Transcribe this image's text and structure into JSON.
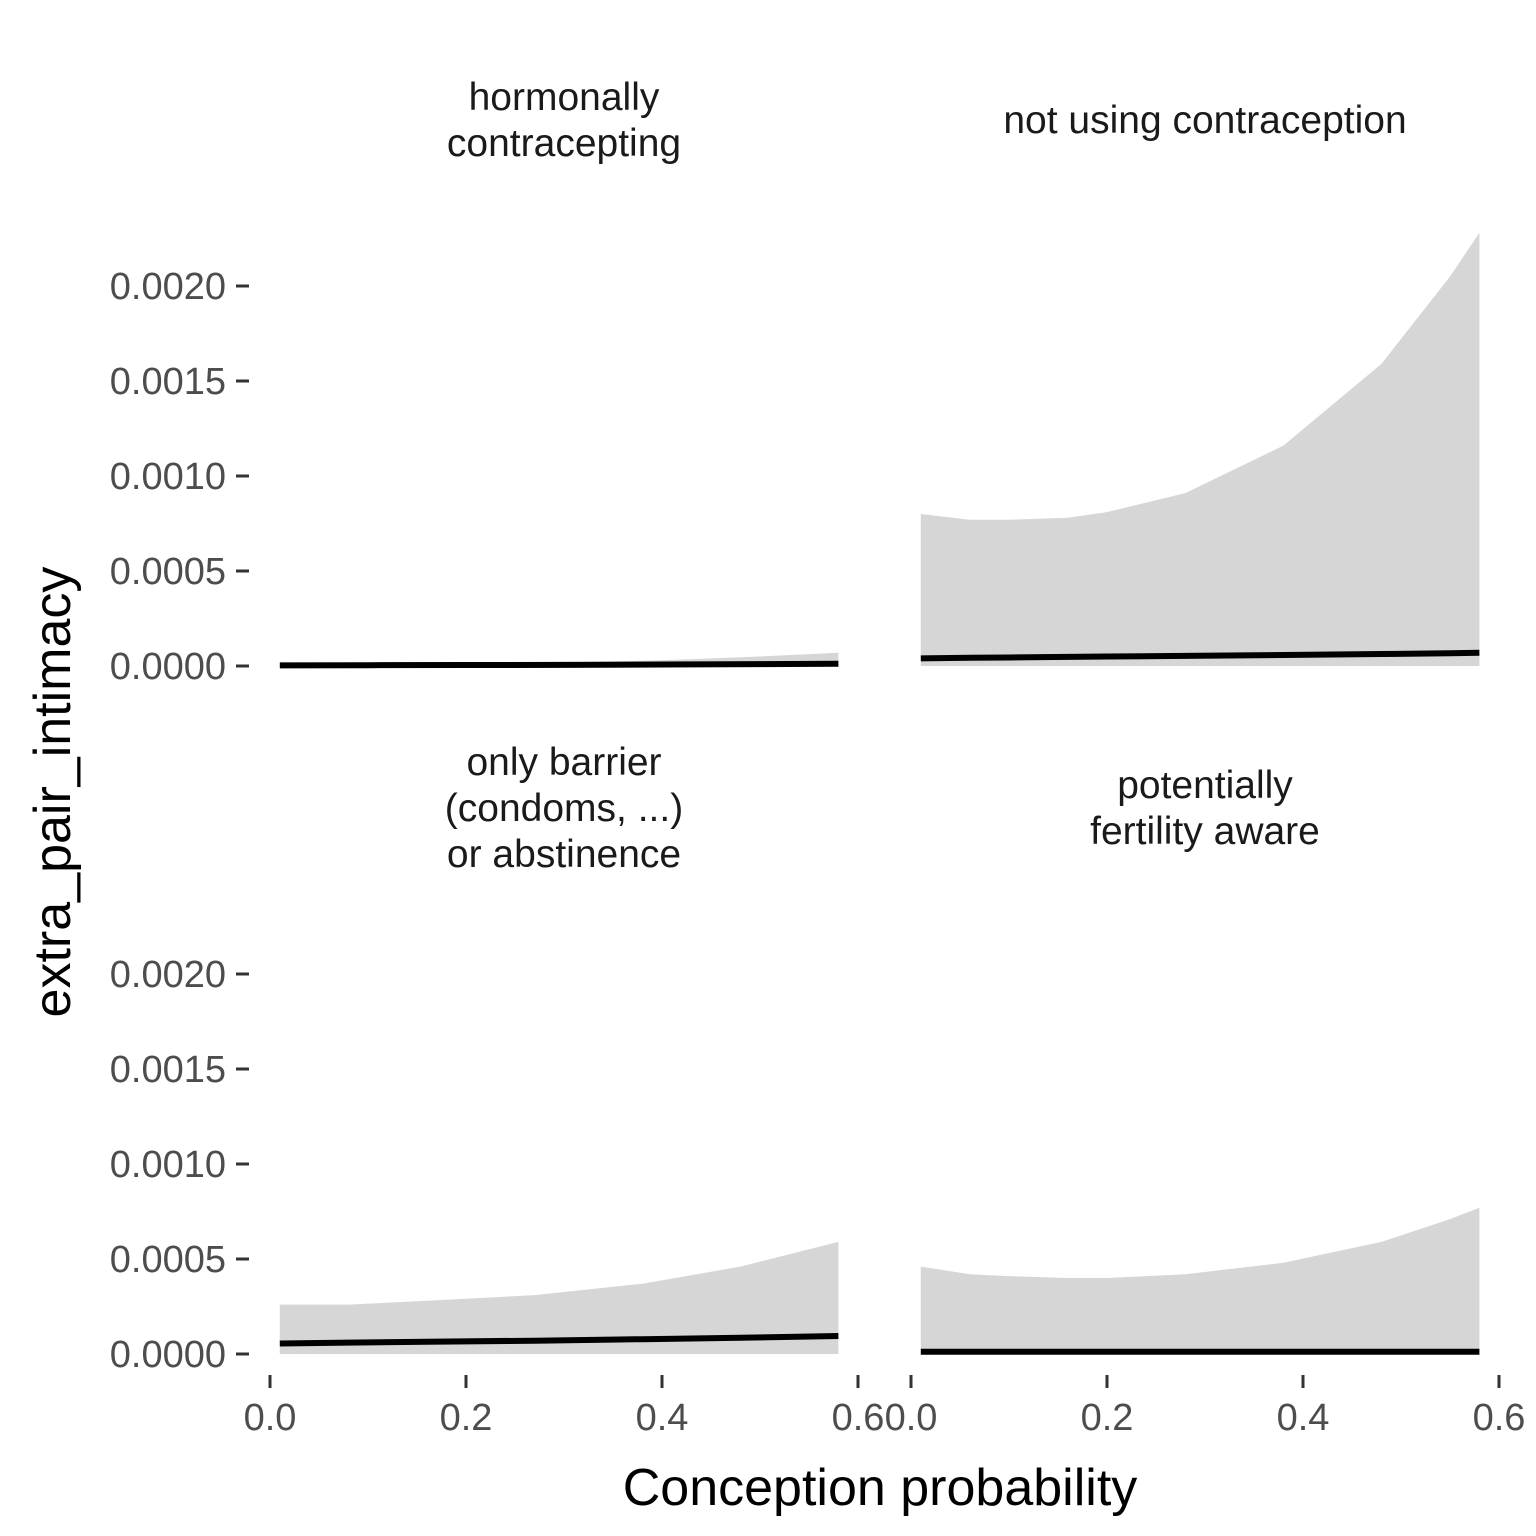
{
  "chart_data": {
    "type": "area",
    "xlabel": "Conception probability",
    "ylabel": "extra_pair_intimacy",
    "xlim": [
      0.0,
      0.6
    ],
    "ylim": [
      0.0,
      0.002
    ],
    "x_ticks": [
      "0.0",
      "0.2",
      "0.4",
      "0.6"
    ],
    "y_ticks": [
      "0.0000",
      "0.0005",
      "0.0010",
      "0.0015",
      "0.0020"
    ],
    "grid": false,
    "facets": [
      {
        "title": [
          "hormonally",
          "contracepting"
        ],
        "x": [
          0.01,
          0.1,
          0.2,
          0.3,
          0.4,
          0.5,
          0.58
        ],
        "fit": [
          3e-06,
          4e-06,
          5e-06,
          6e-06,
          8e-06,
          1e-05,
          1.2e-05
        ],
        "lower": [
          0.0,
          0.0,
          0.0,
          0.0,
          0.0,
          0.0,
          0.0
        ],
        "upper": [
          6e-06,
          8e-06,
          1.2e-05,
          1.8e-05,
          3e-05,
          5e-05,
          7e-05
        ]
      },
      {
        "title": [
          "not using contraception"
        ],
        "x": [
          0.01,
          0.06,
          0.1,
          0.16,
          0.2,
          0.28,
          0.38,
          0.48,
          0.55,
          0.58
        ],
        "fit": [
          4e-05,
          4.3e-05,
          4.5e-05,
          4.8e-05,
          5e-05,
          5.3e-05,
          5.8e-05,
          6.3e-05,
          6.7e-05,
          7e-05
        ],
        "lower": [
          0.0,
          0.0,
          0.0,
          0.0,
          0.0,
          0.0,
          0.0,
          0.0,
          0.0,
          0.0
        ],
        "upper": [
          0.0008,
          0.00077,
          0.00077,
          0.00078,
          0.00081,
          0.00091,
          0.00116,
          0.00159,
          0.00205,
          0.00228
        ]
      },
      {
        "title": [
          "only barrier",
          "(condoms, ...)",
          "or abstinence"
        ],
        "x": [
          0.01,
          0.08,
          0.16,
          0.27,
          0.38,
          0.48,
          0.58
        ],
        "fit": [
          5.5e-05,
          6e-05,
          6.5e-05,
          7e-05,
          7.8e-05,
          8.5e-05,
          9.5e-05
        ],
        "lower": [
          0.0,
          0.0,
          0.0,
          0.0,
          0.0,
          0.0,
          0.0
        ],
        "upper": [
          0.00026,
          0.00026,
          0.00028,
          0.00031,
          0.00037,
          0.00046,
          0.00059
        ]
      },
      {
        "title": [
          "potentially",
          "fertility aware"
        ],
        "x": [
          0.01,
          0.06,
          0.1,
          0.16,
          0.2,
          0.28,
          0.38,
          0.48,
          0.55,
          0.58
        ],
        "fit": [
          1.2e-05,
          1.2e-05,
          1.2e-05,
          1.2e-05,
          1.2e-05,
          1.2e-05,
          1.2e-05,
          1.2e-05,
          1.2e-05,
          1.2e-05
        ],
        "lower": [
          0.0,
          0.0,
          0.0,
          0.0,
          0.0,
          0.0,
          0.0,
          0.0,
          0.0,
          0.0
        ],
        "upper": [
          0.00046,
          0.00042,
          0.00041,
          0.0004,
          0.0004,
          0.00042,
          0.00048,
          0.00059,
          0.00071,
          0.00077
        ]
      }
    ]
  }
}
